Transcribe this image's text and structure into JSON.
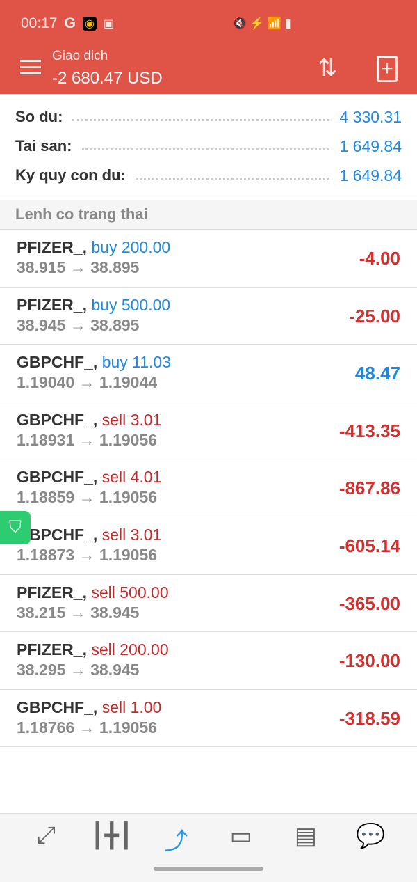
{
  "status_bar": {
    "time": "00:17",
    "icons": [
      "google-icon",
      "app-icon",
      "image-icon"
    ],
    "right_icons": "🔇⚡📶▮"
  },
  "header": {
    "title": "Giao dich",
    "balance": "-2 680.47 USD"
  },
  "summary": [
    {
      "label": "So du:",
      "value": "4 330.31"
    },
    {
      "label": "Tai san:",
      "value": "1 649.84"
    },
    {
      "label": "Ky quy con du:",
      "value": "1 649.84"
    }
  ],
  "section_title": "Lenh co trang thai",
  "orders": [
    {
      "symbol": "PFIZER_,",
      "side": "buy",
      "volume": "buy 200.00",
      "prices": "38.915 → 38.895",
      "profit": "-4.00"
    },
    {
      "symbol": "PFIZER_,",
      "side": "buy",
      "volume": "buy 500.00",
      "prices": "38.945 → 38.895",
      "profit": "-25.00"
    },
    {
      "symbol": "GBPCHF_,",
      "side": "buy",
      "volume": "buy 11.03",
      "prices": "1.19040 → 1.19044",
      "profit": "48.47"
    },
    {
      "symbol": "GBPCHF_,",
      "side": "sell",
      "volume": "sell 3.01",
      "prices": "1.18931 → 1.19056",
      "profit": "-413.35"
    },
    {
      "symbol": "GBPCHF_,",
      "side": "sell",
      "volume": "sell 4.01",
      "prices": "1.18859 → 1.19056",
      "profit": "-867.86"
    },
    {
      "symbol": "GBPCHF_,",
      "side": "sell",
      "volume": "sell 3.01",
      "prices": "1.18873 → 1.19056",
      "profit": "-605.14"
    },
    {
      "symbol": "PFIZER_,",
      "side": "sell",
      "volume": "sell 500.00",
      "prices": "38.215 → 38.945",
      "profit": "-365.00"
    },
    {
      "symbol": "PFIZER_,",
      "side": "sell",
      "volume": "sell 200.00",
      "prices": "38.295 → 38.945",
      "profit": "-130.00"
    },
    {
      "symbol": "GBPCHF_,",
      "side": "sell",
      "volume": "sell 1.00",
      "prices": "1.18766 → 1.19056",
      "profit": "-318.59"
    }
  ],
  "nav": [
    "quotes",
    "charts",
    "trade",
    "history",
    "news",
    "chat"
  ],
  "colors": {
    "header": "#e05448",
    "buy": "#1e88e5",
    "sell": "#c62828",
    "active": "#2196f3"
  }
}
